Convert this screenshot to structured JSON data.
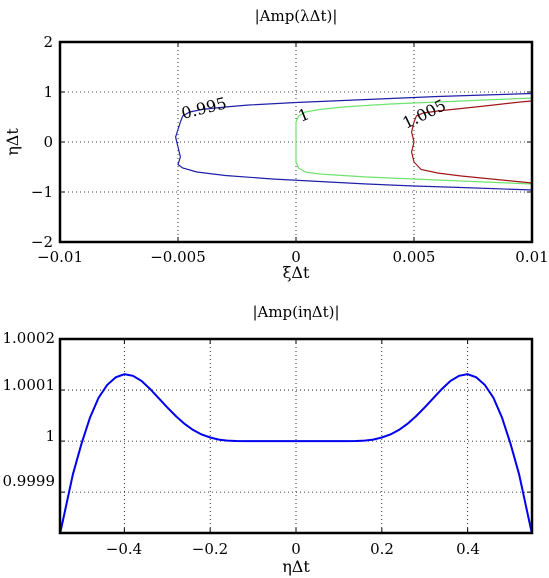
{
  "chart_data": [
    {
      "type": "contour",
      "title": "|Amp(λΔt)|",
      "xlabel": "ξΔt",
      "ylabel": "ηΔt",
      "xlim": [
        -0.01,
        0.01
      ],
      "ylim": [
        -2,
        2
      ],
      "xticks": [
        "−0.01",
        "−0.005",
        "0",
        "0.005",
        "0.01"
      ],
      "yticks": [
        "−2",
        "−1",
        "0",
        "1",
        "2"
      ],
      "grid": true,
      "series": [
        {
          "name": "0.995",
          "color": "#1f1fa8",
          "points": [
            [
              0.01,
              0.97
            ],
            [
              0.008,
              0.94
            ],
            [
              0.006,
              0.91
            ],
            [
              0.004,
              0.87
            ],
            [
              0.002,
              0.83
            ],
            [
              0.0,
              0.79
            ],
            [
              -0.002,
              0.74
            ],
            [
              -0.003,
              0.7
            ],
            [
              -0.004,
              0.65
            ],
            [
              -0.0045,
              0.6
            ],
            [
              -0.0048,
              0.52
            ],
            [
              -0.0049,
              0.4
            ],
            [
              -0.005,
              0.25
            ],
            [
              -0.0051,
              0.1
            ],
            [
              -0.005,
              -0.1
            ],
            [
              -0.0049,
              -0.3
            ],
            [
              -0.005,
              -0.45
            ],
            [
              -0.0048,
              -0.52
            ],
            [
              -0.0042,
              -0.6
            ],
            [
              -0.003,
              -0.67
            ],
            [
              -0.001,
              -0.74
            ],
            [
              0.001,
              -0.79
            ],
            [
              0.003,
              -0.84
            ],
            [
              0.005,
              -0.88
            ],
            [
              0.007,
              -0.91
            ],
            [
              0.01,
              -0.96
            ]
          ]
        },
        {
          "name": "1",
          "color": "#6fe36f",
          "points": [
            [
              0.01,
              0.88
            ],
            [
              0.008,
              0.84
            ],
            [
              0.006,
              0.8
            ],
            [
              0.004,
              0.76
            ],
            [
              0.002,
              0.7
            ],
            [
              0.001,
              0.65
            ],
            [
              0.0004,
              0.6
            ],
            [
              0.0001,
              0.52
            ],
            [
              0.0,
              0.4
            ],
            [
              0.0,
              0.2
            ],
            [
              0.0,
              -0.2
            ],
            [
              0.0,
              -0.4
            ],
            [
              0.0001,
              -0.52
            ],
            [
              0.0004,
              -0.6
            ],
            [
              0.001,
              -0.64
            ],
            [
              0.003,
              -0.7
            ],
            [
              0.005,
              -0.74
            ],
            [
              0.007,
              -0.78
            ],
            [
              0.01,
              -0.84
            ]
          ]
        },
        {
          "name": "1.005",
          "color": "#a01818",
          "points": [
            [
              0.01,
              0.82
            ],
            [
              0.0095,
              0.8
            ],
            [
              0.008,
              0.72
            ],
            [
              0.007,
              0.67
            ],
            [
              0.006,
              0.62
            ],
            [
              0.0054,
              0.58
            ],
            [
              0.0051,
              0.52
            ],
            [
              0.005,
              0.4
            ],
            [
              0.0049,
              0.2
            ],
            [
              0.005,
              0.0
            ],
            [
              0.0049,
              -0.2
            ],
            [
              0.005,
              -0.4
            ],
            [
              0.0053,
              -0.55
            ],
            [
              0.006,
              -0.62
            ],
            [
              0.007,
              -0.68
            ],
            [
              0.0085,
              -0.75
            ],
            [
              0.01,
              -0.82
            ]
          ]
        }
      ],
      "contour_labels": [
        "0.995",
        "1",
        "1.005"
      ]
    },
    {
      "type": "line",
      "title": "|Amp(iηΔt)|",
      "xlabel": "ηΔt",
      "ylabel": "",
      "xlim": [
        -0.55,
        0.55
      ],
      "ylim": [
        0.99982,
        1.0002
      ],
      "xticks": [
        "−0.4",
        "−0.2",
        "0",
        "0.2",
        "0.4"
      ],
      "yticks": [
        "0.9999",
        "1",
        "1.0001",
        "1.0002"
      ],
      "grid": true,
      "series": [
        {
          "color": "#0000ee",
          "x": [
            -0.55,
            -0.52,
            -0.5,
            -0.48,
            -0.46,
            -0.44,
            -0.42,
            -0.4,
            -0.38,
            -0.36,
            -0.34,
            -0.32,
            -0.3,
            -0.28,
            -0.26,
            -0.24,
            -0.22,
            -0.2,
            -0.18,
            -0.16,
            -0.14,
            -0.12,
            -0.1,
            -0.08,
            -0.06,
            -0.04,
            -0.02,
            0.0,
            0.02,
            0.04,
            0.06,
            0.08,
            0.1,
            0.12,
            0.14,
            0.16,
            0.18,
            0.2,
            0.22,
            0.24,
            0.26,
            0.28,
            0.3,
            0.32,
            0.34,
            0.36,
            0.38,
            0.4,
            0.42,
            0.44,
            0.46,
            0.48,
            0.5,
            0.52,
            0.55
          ],
          "y": [
            0.999818,
            0.999935,
            0.999995,
            1.000046,
            1.000085,
            1.00011,
            1.000125,
            1.000131,
            1.000128,
            1.000118,
            1.000102,
            1.000084,
            1.000066,
            1.000049,
            1.000034,
            1.000022,
            1.000013,
            1.000007,
            1.000003,
            1.000001,
            1.0000003,
            1.0000001,
            1.0,
            1.0,
            1.0,
            1.0,
            1.0,
            1.0,
            1.0,
            1.0,
            1.0,
            1.0,
            1.0,
            1.0000001,
            1.0000003,
            1.000001,
            1.000003,
            1.000007,
            1.000013,
            1.000022,
            1.000034,
            1.000049,
            1.000066,
            1.000084,
            1.000102,
            1.000118,
            1.000128,
            1.000131,
            1.000125,
            1.00011,
            1.000085,
            1.000046,
            0.999995,
            0.999935,
            0.999818
          ]
        }
      ]
    }
  ]
}
